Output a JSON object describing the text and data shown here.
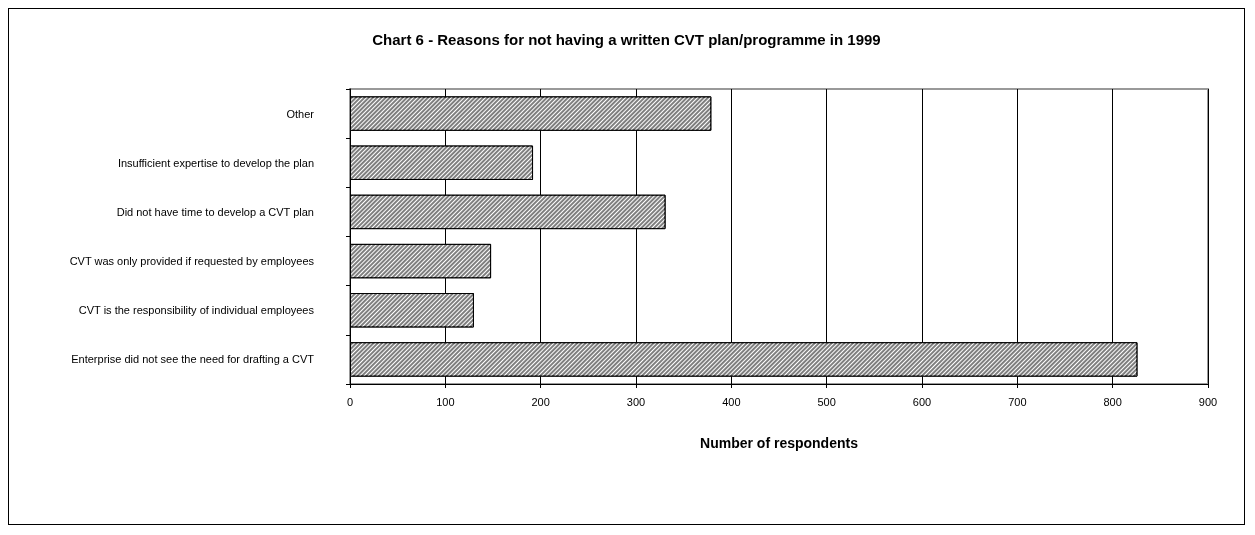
{
  "chart_data": {
    "type": "bar",
    "orientation": "horizontal",
    "title": "Chart 6 - Reasons for not having a written CVT plan/programme in 1999",
    "xlabel": "Number of respondents",
    "categories": [
      "Other",
      "Insufficient expertise to develop the plan",
      "Did not have time to develop a CVT plan",
      "CVT was only provided if requested by employees",
      "CVT is the responsibility of individual employees",
      "Enterprise did not see the need for drafting a CVT"
    ],
    "values": [
      379,
      192,
      331,
      148,
      130,
      826
    ],
    "color": "#7f7f7f",
    "xlim": [
      0,
      900
    ],
    "xticks": [
      0,
      100,
      200,
      300,
      400,
      500,
      600,
      700,
      800,
      900
    ],
    "grid": "x"
  }
}
